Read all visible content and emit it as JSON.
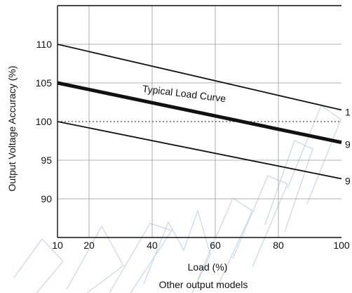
{
  "chart_data": {
    "type": "line",
    "title": "",
    "xlabel": "Load (%)",
    "ylabel": "Output Voltage Accuracy (%)",
    "subtitle": "Other output models",
    "xlim": [
      10,
      100
    ],
    "ylim": [
      85,
      115
    ],
    "x_ticks": [
      "10",
      "20",
      "40",
      "60",
      "80",
      "100"
    ],
    "y_ticks": [
      "90",
      "95",
      "100",
      "105",
      "110"
    ],
    "grid": true,
    "series": [
      {
        "x": [
          10,
          100
        ],
        "y": [
          110,
          101.5
        ],
        "emphasis": "thin",
        "end_label": "1"
      },
      {
        "x": [
          10,
          100
        ],
        "y": [
          105,
          97.3
        ],
        "emphasis": "thick",
        "end_label": "9"
      },
      {
        "x": [
          10,
          100
        ],
        "y": [
          100,
          92.6
        ],
        "emphasis": "thin",
        "end_label": "9"
      }
    ],
    "reference_line": {
      "y": 100,
      "style": "dotted"
    },
    "annotations": [
      {
        "text": "Typical Load Curve",
        "x": 38,
        "y": 104.5
      }
    ],
    "watermark": "PRELIMINARY",
    "colors": {
      "line": "#111111",
      "grid": "#999999",
      "watermark": "#c9d7e6"
    }
  }
}
